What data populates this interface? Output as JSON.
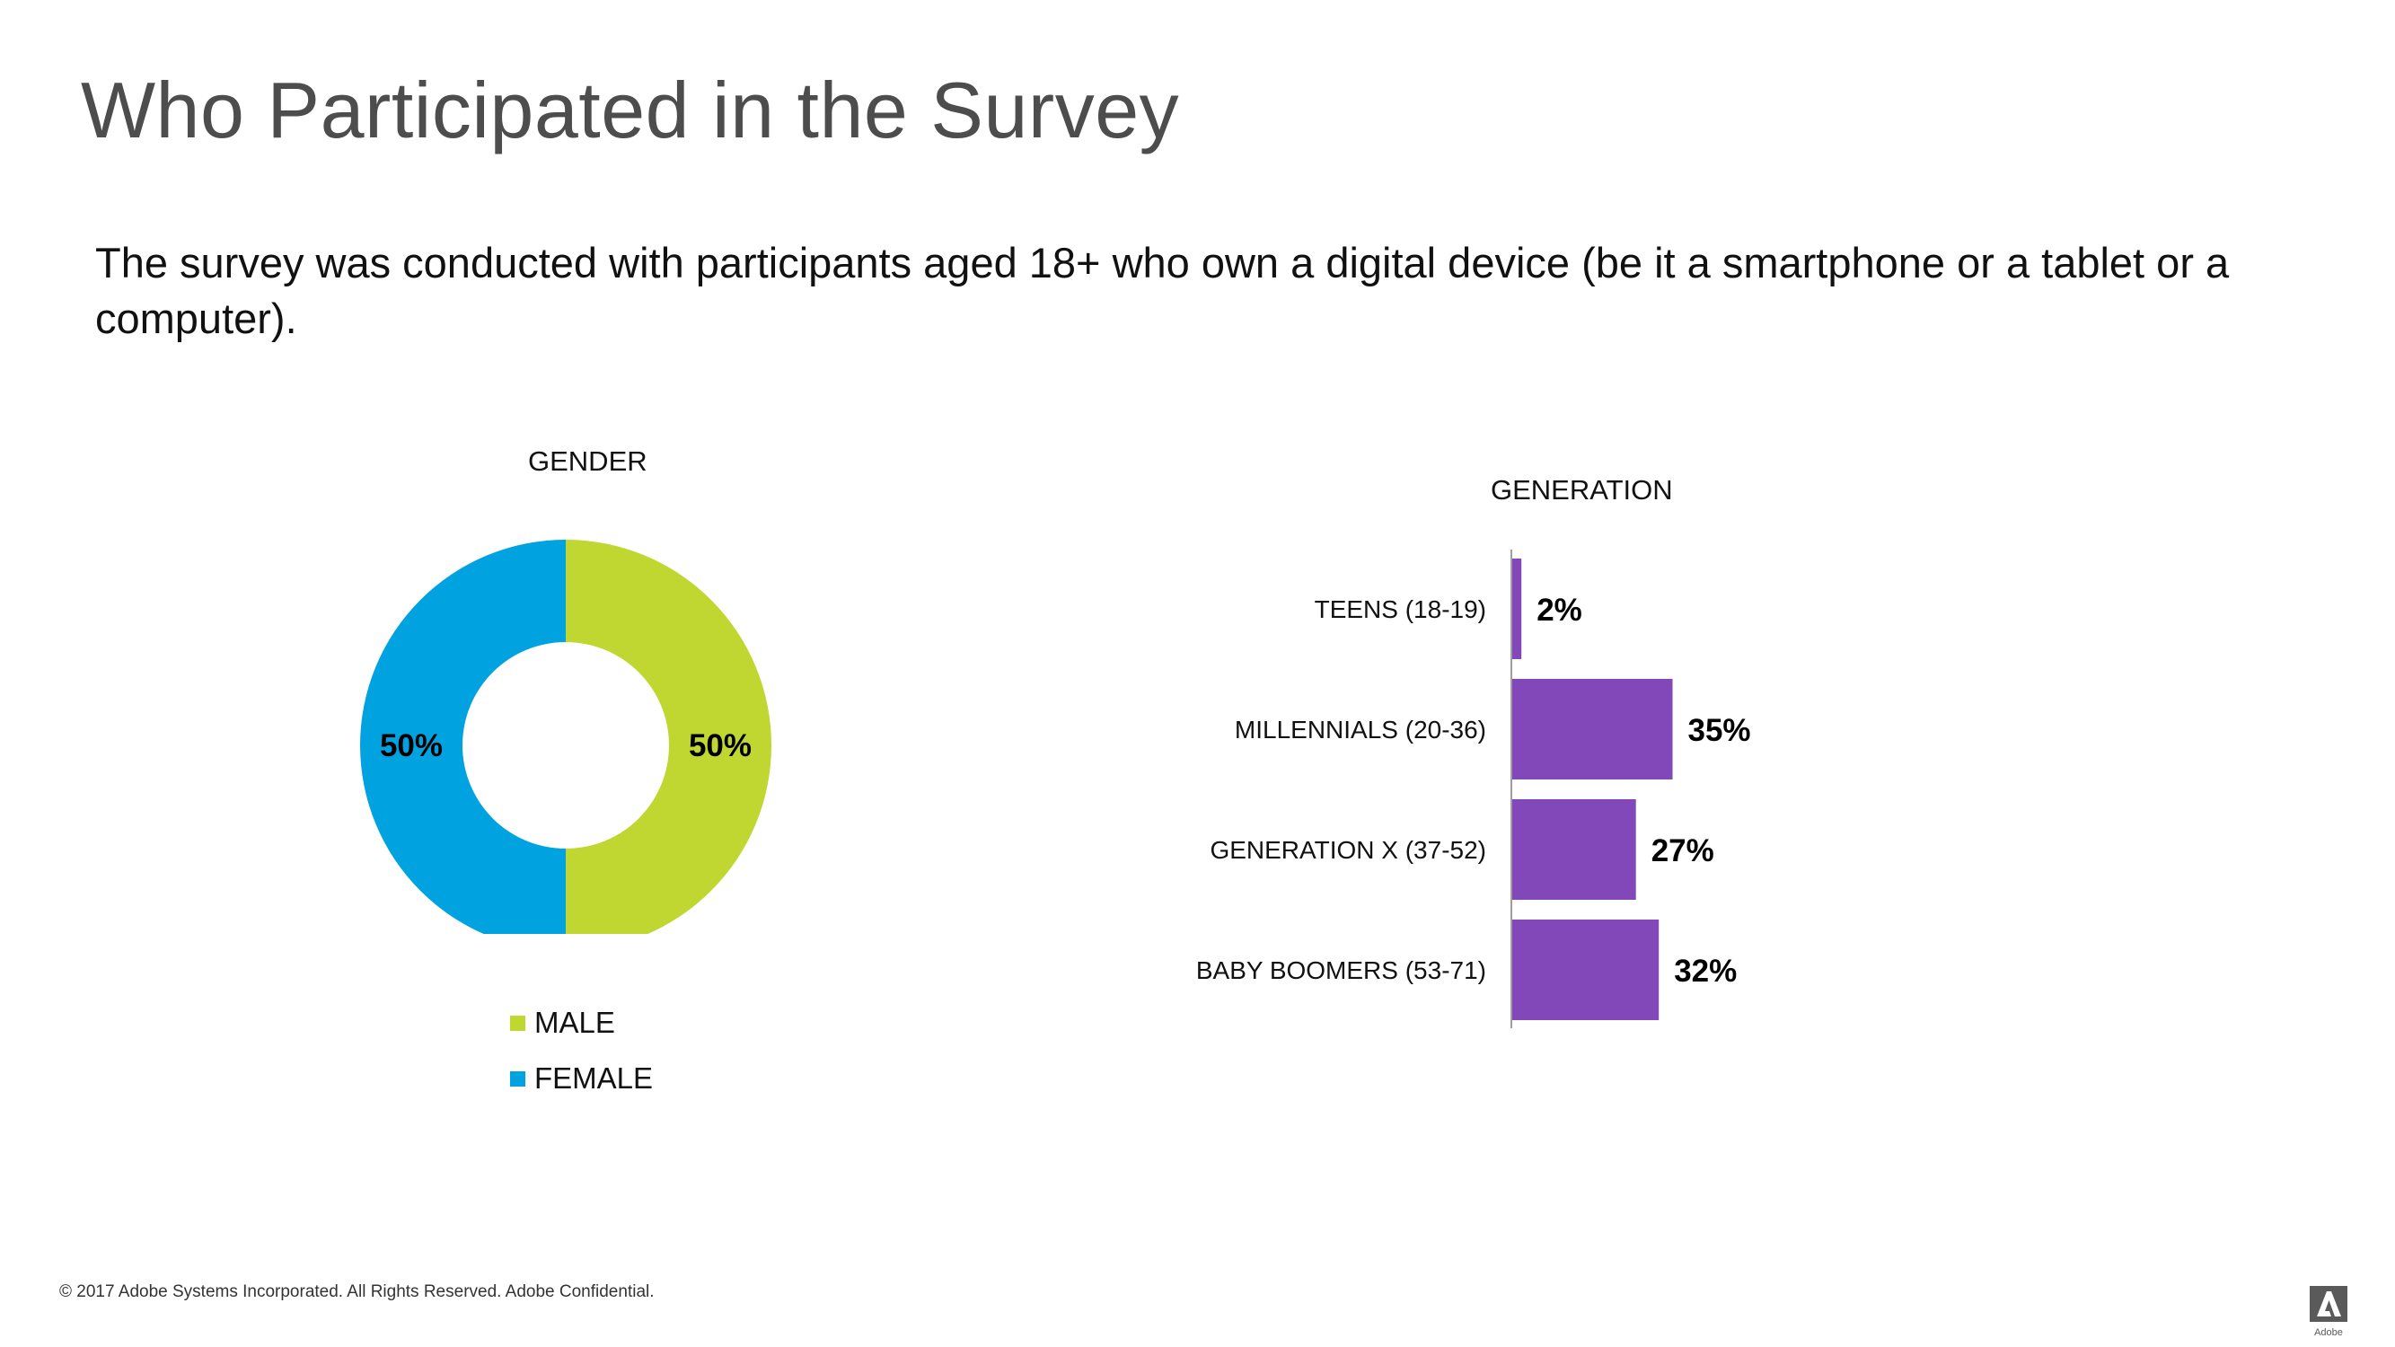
{
  "title": "Who Participated in the Survey",
  "body": "The survey was conducted with participants aged 18+ who own a digital device (be it a smartphone or a tablet or a computer).",
  "footer": "© 2017 Adobe Systems Incorporated.  All Rights Reserved.  Adobe Confidential.",
  "logo": {
    "icon": "adobe-logo-icon",
    "text": "Adobe"
  },
  "colors": {
    "male": "#bfd730",
    "female": "#00a3e0",
    "bar": "#8247b8",
    "axis": "#9e9e9e"
  },
  "chart_data": [
    {
      "type": "pie",
      "title": "GENDER",
      "donut": true,
      "labels": [
        "MALE",
        "FEMALE"
      ],
      "values": [
        50,
        50
      ],
      "data_labels": [
        "50%",
        "50%"
      ],
      "legend": "bottom",
      "colors": [
        "#bfd730",
        "#00a3e0"
      ]
    },
    {
      "type": "bar",
      "orientation": "horizontal",
      "title": "GENERATION",
      "categories": [
        "TEENS (18-19)",
        "MILLENNIALS (20-36)",
        "GENERATION X (37-52)",
        "BABY BOOMERS (53-71)"
      ],
      "values": [
        2,
        35,
        27,
        32
      ],
      "data_labels": [
        "2%",
        "35%",
        "27%",
        "32%"
      ],
      "xlim": [
        0,
        100
      ],
      "grid": false,
      "legend": "none",
      "color": "#8247b8"
    }
  ]
}
